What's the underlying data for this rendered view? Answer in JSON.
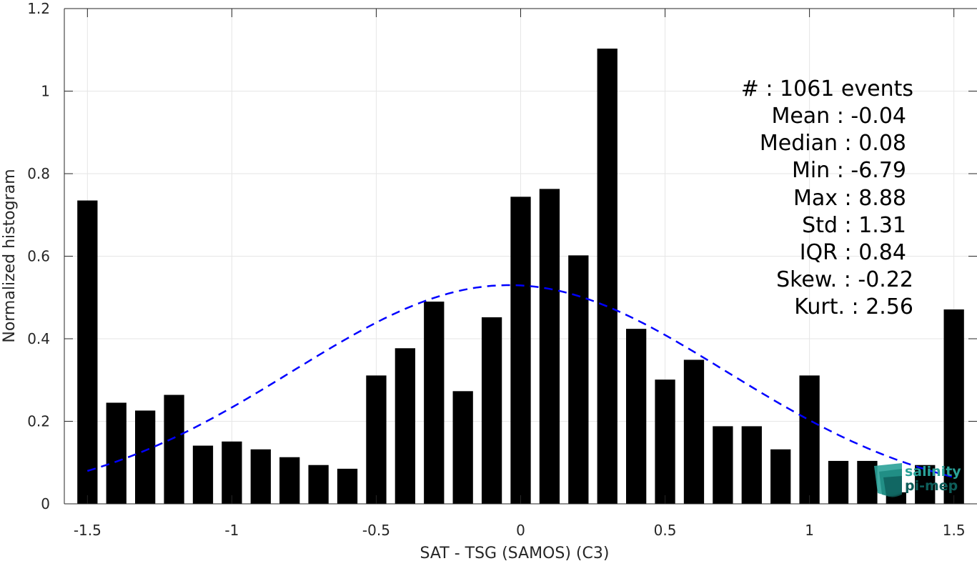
{
  "chart_data": {
    "type": "bar",
    "xlabel": "SAT - TSG (SAMOS) (C3)",
    "ylabel": "Normalized histogram",
    "xlim": [
      -1.58,
      1.58
    ],
    "ylim": [
      0,
      1.2
    ],
    "xticks": [
      -1.5,
      -1,
      -0.5,
      0,
      0.5,
      1,
      1.5
    ],
    "xtick_labels": [
      "-1.5",
      "-1",
      "-0.5",
      "0",
      "0.5",
      "1",
      "1.5"
    ],
    "yticks": [
      0,
      0.2,
      0.4,
      0.6,
      0.8,
      1,
      1.2
    ],
    "ytick_labels": [
      "0",
      "0.2",
      "0.4",
      "0.6",
      "0.8",
      "1",
      "1.2"
    ],
    "grid": true,
    "bar_color": "#000000",
    "bins": [
      -1.5,
      -1.4,
      -1.3,
      -1.2,
      -1.1,
      -1.0,
      -0.9,
      -0.8,
      -0.7,
      -0.6,
      -0.5,
      -0.4,
      -0.3,
      -0.2,
      -0.1,
      0.0,
      0.1,
      0.2,
      0.3,
      0.4,
      0.5,
      0.6,
      0.7,
      0.8,
      0.9,
      1.0,
      1.1,
      1.2,
      1.3,
      1.4,
      1.5
    ],
    "values": [
      0.735,
      0.245,
      0.226,
      0.264,
      0.141,
      0.151,
      0.132,
      0.113,
      0.094,
      0.085,
      0.311,
      0.377,
      0.49,
      0.273,
      0.452,
      0.744,
      0.763,
      0.602,
      1.103,
      0.424,
      0.301,
      0.349,
      0.188,
      0.188,
      0.132,
      0.311,
      0.104,
      0.104,
      0.028,
      0.094,
      0.471
    ],
    "fit_curve": {
      "style": "dashed",
      "color": "#0000ff",
      "mean": -0.04,
      "std": 0.75,
      "peak": 0.53,
      "x_range": [
        -1.5,
        1.5
      ]
    },
    "annotations": [
      "#  : 1061 events",
      "Mean : -0.04",
      "Median : 0.08",
      "Min : -6.79",
      "Max : 8.88",
      "Std : 1.31",
      "IQR : 0.84",
      "Skew. : -0.22",
      "Kurt. : 2.56"
    ]
  },
  "logo": {
    "line1": "salinity",
    "line2": "pi-mep",
    "color1": "#2aa198",
    "color2": "#0e5e5a"
  }
}
